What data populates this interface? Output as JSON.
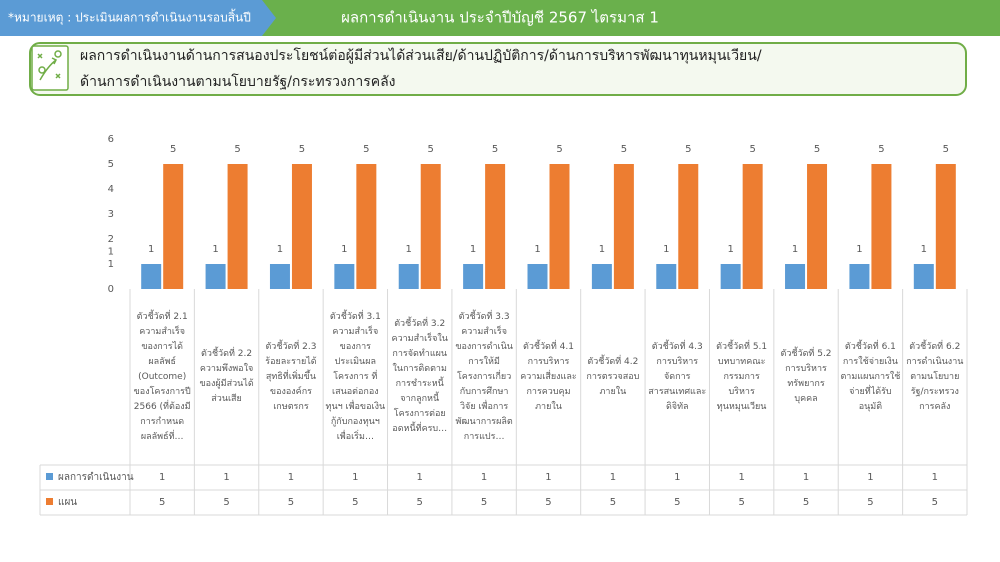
{
  "header": {
    "note": "*หมายเหตุ : ประเมินผลการดำเนินงานรอบสิ้นปี",
    "title": "ผลการดำเนินงาน ประจำปีบัญชี 2567 ไตรมาส 1"
  },
  "section_title": [
    "ผลการดำเนินงานด้านการสนองประโยชน์ต่อผู้มีส่วนได้ส่วนเสีย/ด้านปฏิบัติการ/ด้านการบริหารพัฒนาทุนหมุนเวียน/",
    "ด้านการดำเนินงานตามนโยบายรัฐ/กระทรวงการคลัง"
  ],
  "chart_data": {
    "type": "bar",
    "categories": [
      "ตัวชี้วัดที่ 2.1 ความสำเร็จของการได้ผลลัพธ์ (Outcome) ของโครงการปี 2566 (ที่ต้องมีการกำหนดผลลัพธ์ที่…",
      "ตัวชี้วัดที่ 2.2 ความพึงพอใจของผู้มีส่วนได้ส่วนเสีย",
      "ตัวชี้วัดที่ 2.3 ร้อยละรายได้สุทธิที่เพิ่มขึ้นขององค์กรเกษตรกร",
      "ตัวชี้วัดที่ 3.1 ความสำเร็จของการประเมินผลโครงการ ที่เสนอต่อกองทุนฯ เพื่อขอเงินกู้กับกองทุนฯ เพื่อเริ่ม…",
      "ตัวชี้วัดที่ 3.2 ความสำเร็จในการจัดทำแผนในการติดตามการชำระหนี้จากลูกหนี้โครงการต่อยอดหนี้ที่ครบ…",
      "ตัวชี้วัดที่ 3.3 ความสำเร็จของการดำเนินการให้มีโครงการเกี่ยวกับการศึกษาวิจัย เพื่อการพัฒนาการผลิต การแปร…",
      "ตัวชี้วัดที่ 4.1 การบริหารความเสี่ยงและการควบคุมภายใน",
      "ตัวชี้วัดที่ 4.2 การตรวจสอบภายใน",
      "ตัวชี้วัดที่ 4.3 การบริหารจัดการสารสนเทศและดิจิทัล",
      "ตัวชี้วัดที่ 5.1 บทบาทคณะกรรมการบริหารทุนหมุนเวียน",
      "ตัวชี้วัดที่ 5.2 การบริหารทรัพยากรบุคคล",
      "ตัวชี้วัดที่ 6.1 การใช้จ่ายเงินตามแผนการใช้จ่ายที่ได้รับอนุมัติ",
      "ตัวชี้วัดที่ 6.2 การดำเนินงานตามนโยบายรัฐ/กระทรวงการคลัง"
    ],
    "series": [
      {
        "name": "ผลการดำเนินงาน",
        "color": "#5b9bd5",
        "values": [
          1,
          1,
          1,
          1,
          1,
          1,
          1,
          1,
          1,
          1,
          1,
          1,
          1
        ]
      },
      {
        "name": "แผน",
        "color": "#ed7d31",
        "values": [
          5,
          5,
          5,
          5,
          5,
          5,
          5,
          5,
          5,
          5,
          5,
          5,
          5
        ]
      }
    ],
    "ylim": [
      0,
      6
    ],
    "yticks": [
      0,
      1,
      {
        "value": 1.5,
        "label": "1"
      },
      2,
      3,
      4,
      5,
      6
    ],
    "grid": false
  }
}
